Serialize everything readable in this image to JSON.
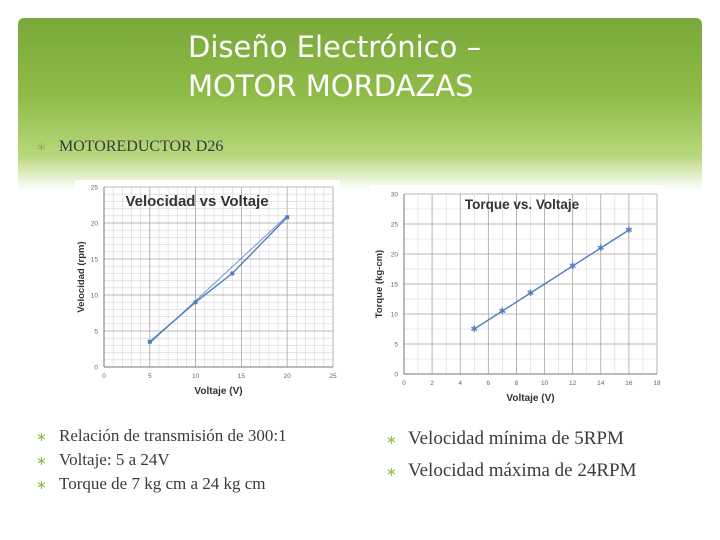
{
  "slide": {
    "title_line1": "Diseño Electrónico –",
    "title_line2": "MOTOR MORDAZAS",
    "subtitle": "MOTOREDUCTOR D26",
    "bullet_symbol": "∗",
    "left_bullets": [
      "Relación de transmisión de 300:1",
      "Voltaje: 5 a 24V",
      "Torque de 7 kg cm a 24 kg cm"
    ],
    "right_bullets": [
      "Velocidad mínima de 5RPM",
      "Velocidad máxima de 24RPM"
    ],
    "colors": {
      "header_green": "#8fbc47",
      "series_blue": "#4f7fbf"
    }
  },
  "chart_data": [
    {
      "type": "line",
      "title": "Velocidad vs Voltaje",
      "xlabel": "Voltaje (V)",
      "ylabel": "Velocidad (rpm)",
      "xlim": [
        0,
        25
      ],
      "ylim": [
        0,
        25
      ],
      "xticks": [
        0,
        5,
        10,
        15,
        20,
        25
      ],
      "yticks": [
        0,
        5,
        10,
        15,
        20,
        25
      ],
      "grid": true,
      "series": [
        {
          "x": [
            5,
            10,
            14,
            20
          ],
          "y": [
            3.5,
            9,
            13,
            20.8
          ]
        },
        {
          "x": [
            5,
            20
          ],
          "y": [
            3.3,
            21
          ]
        }
      ]
    },
    {
      "type": "scatter",
      "title": "Torque vs. Voltaje",
      "xlabel": "Voltaje (V)",
      "ylabel": "Torque (kg-cm)",
      "xlim": [
        0,
        18
      ],
      "ylim": [
        0,
        30
      ],
      "xticks": [
        0,
        2,
        4,
        6,
        8,
        10,
        12,
        14,
        16,
        18
      ],
      "yticks": [
        0,
        5,
        10,
        15,
        20,
        25,
        30
      ],
      "grid": true,
      "series": [
        {
          "x": [
            5,
            7,
            9,
            12,
            14,
            16
          ],
          "y": [
            7.5,
            10.5,
            13.5,
            18,
            21,
            24
          ]
        }
      ]
    }
  ]
}
